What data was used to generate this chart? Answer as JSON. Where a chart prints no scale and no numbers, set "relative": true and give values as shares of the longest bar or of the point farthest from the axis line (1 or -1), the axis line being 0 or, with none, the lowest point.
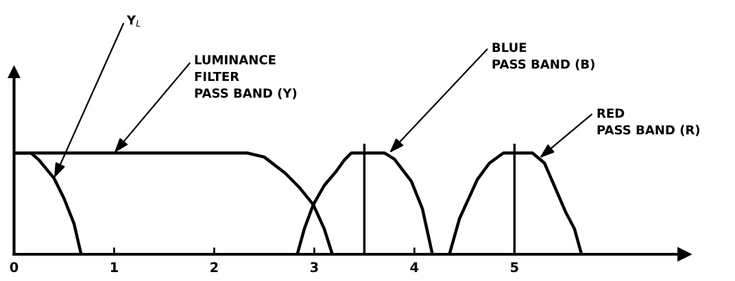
{
  "chart_data": {
    "type": "line",
    "relative": true,
    "xlim": [
      0,
      6.7
    ],
    "xticks": [
      0,
      1,
      2,
      3,
      4,
      5
    ],
    "series": [
      {
        "color": "#000000",
        "x": [
          0,
          0.17,
          0.25,
          0.4,
          0.5,
          0.6,
          0.67
        ],
        "values": [
          1,
          1,
          0.93,
          0.75,
          0.55,
          0.3,
          0
        ]
      },
      {
        "color": "#000000",
        "x": [
          0,
          2.33,
          2.5,
          2.71,
          2.85,
          2.99,
          3.1,
          3.18
        ],
        "values": [
          1,
          1,
          0.96,
          0.8,
          0.66,
          0.49,
          0.25,
          0
        ]
      },
      {
        "color": "#000000",
        "x": [
          2.83,
          2.9,
          2.99,
          3.1,
          3.22,
          3.3,
          3.37,
          3.7,
          3.8,
          3.97,
          4.08,
          4.18
        ],
        "values": [
          0,
          0.25,
          0.49,
          0.68,
          0.82,
          0.93,
          1,
          1,
          0.94,
          0.72,
          0.45,
          0
        ]
      },
      {
        "color": "#000000",
        "x": [
          4.35,
          4.45,
          4.63,
          4.75,
          4.89,
          5.18,
          5.3,
          5.51,
          5.6,
          5.67
        ],
        "values": [
          0,
          0.35,
          0.74,
          0.9,
          1,
          1,
          0.9,
          0.42,
          0.25,
          0
        ]
      }
    ],
    "ref_lines": [
      {
        "axis": "x",
        "value": 3.5,
        "label": null
      },
      {
        "axis": "x",
        "value": 5,
        "label": null
      }
    ],
    "annotations": [
      {
        "text": "Y$_{L}$",
        "x": 0.4,
        "y": 0.75
      },
      {
        "text": "LUMINANCE\nFILTER\nPASS BAND (Y)",
        "x": 1.0,
        "y": 1
      },
      {
        "text": "BLUE\nPASS BAND (B)",
        "x": 3.75,
        "y": 1
      },
      {
        "text": "RED\nPASS BAND (R)",
        "x": 5.25,
        "y": 0.95
      }
    ],
    "grid": false,
    "legend": false,
    "marker": "none",
    "line_style": "solid"
  }
}
